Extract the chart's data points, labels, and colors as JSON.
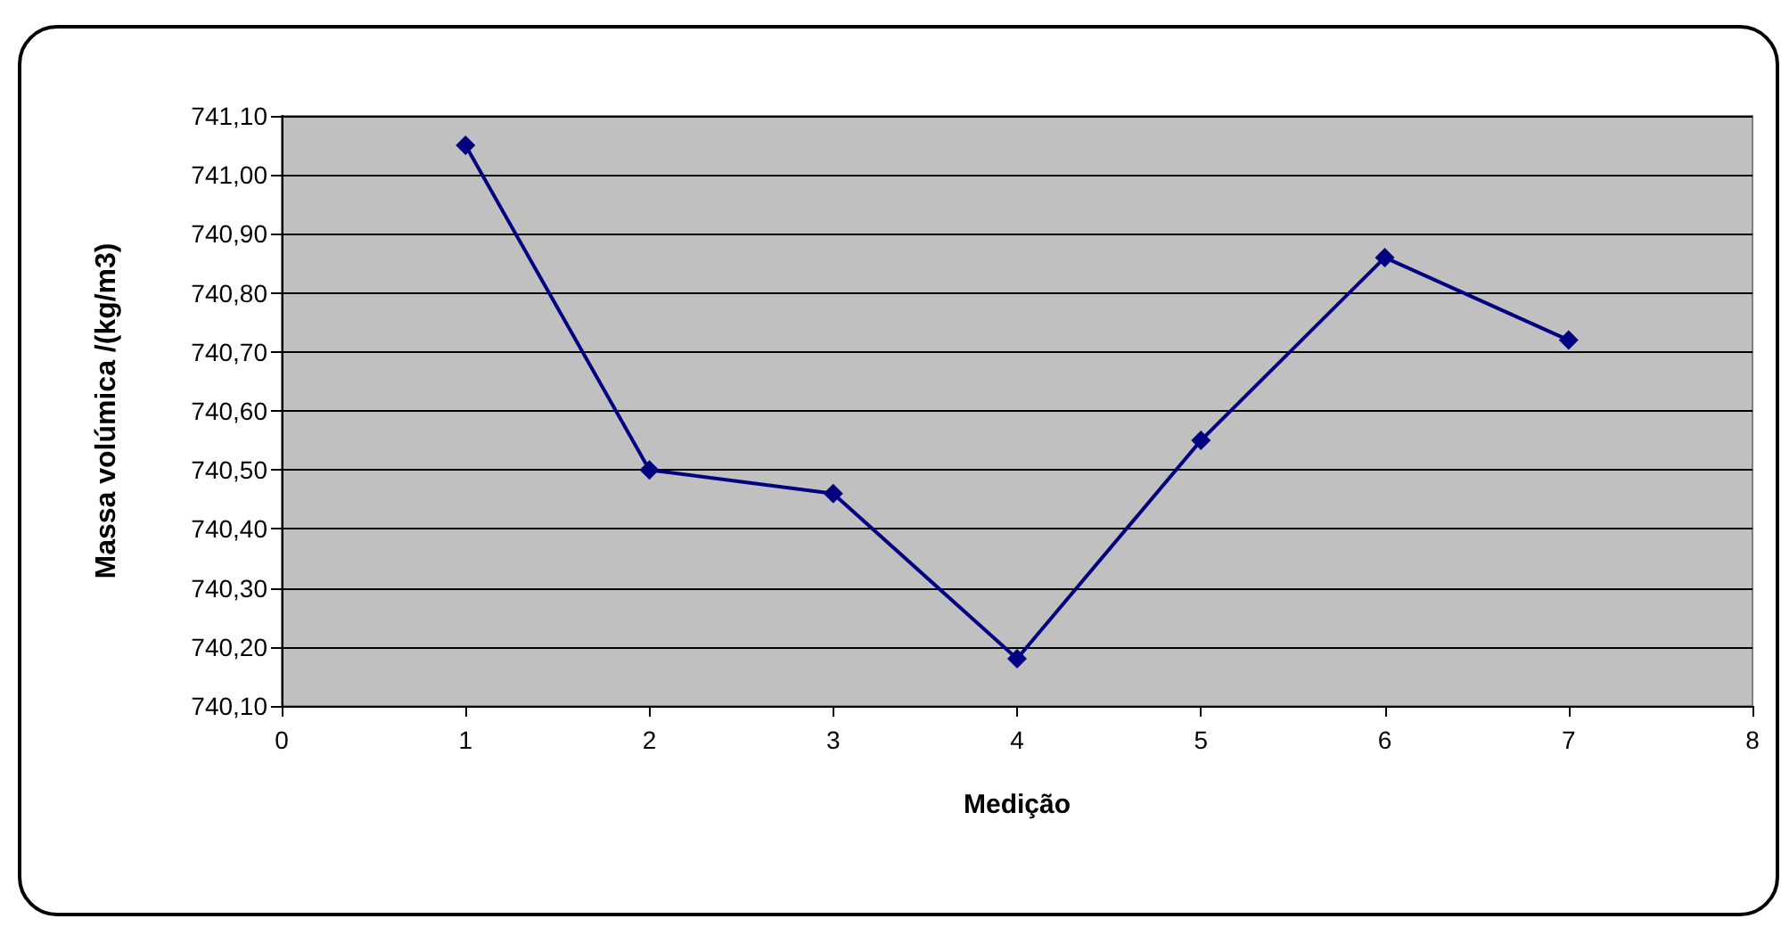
{
  "chart_data": {
    "type": "line",
    "xlabel": "Medição",
    "ylabel": "Massa volúmica /(kg/m3)",
    "x": [
      1,
      2,
      3,
      4,
      5,
      6,
      7
    ],
    "series": [
      {
        "color": "#000080",
        "values": [
          741.05,
          740.5,
          740.46,
          740.18,
          740.55,
          740.86,
          740.72
        ]
      }
    ],
    "xlim": [
      0,
      8
    ],
    "xticks": [
      0,
      1,
      2,
      3,
      4,
      5,
      6,
      7,
      8
    ],
    "ylim": [
      740.1,
      741.1
    ],
    "yticks": [
      {
        "value": 740.1,
        "label": "740,10"
      },
      {
        "value": 740.2,
        "label": "740,20"
      },
      {
        "value": 740.3,
        "label": "740,30"
      },
      {
        "value": 740.4,
        "label": "740,40"
      },
      {
        "value": 740.5,
        "label": "740,50"
      },
      {
        "value": 740.6,
        "label": "740,60"
      },
      {
        "value": 740.7,
        "label": "740,70"
      },
      {
        "value": 740.8,
        "label": "740,80"
      },
      {
        "value": 740.9,
        "label": "740,90"
      },
      {
        "value": 741.0,
        "label": "741,00"
      },
      {
        "value": 741.1,
        "label": "741,10"
      }
    ],
    "grid": "y",
    "marker": "diamond",
    "line_style": "solid"
  }
}
